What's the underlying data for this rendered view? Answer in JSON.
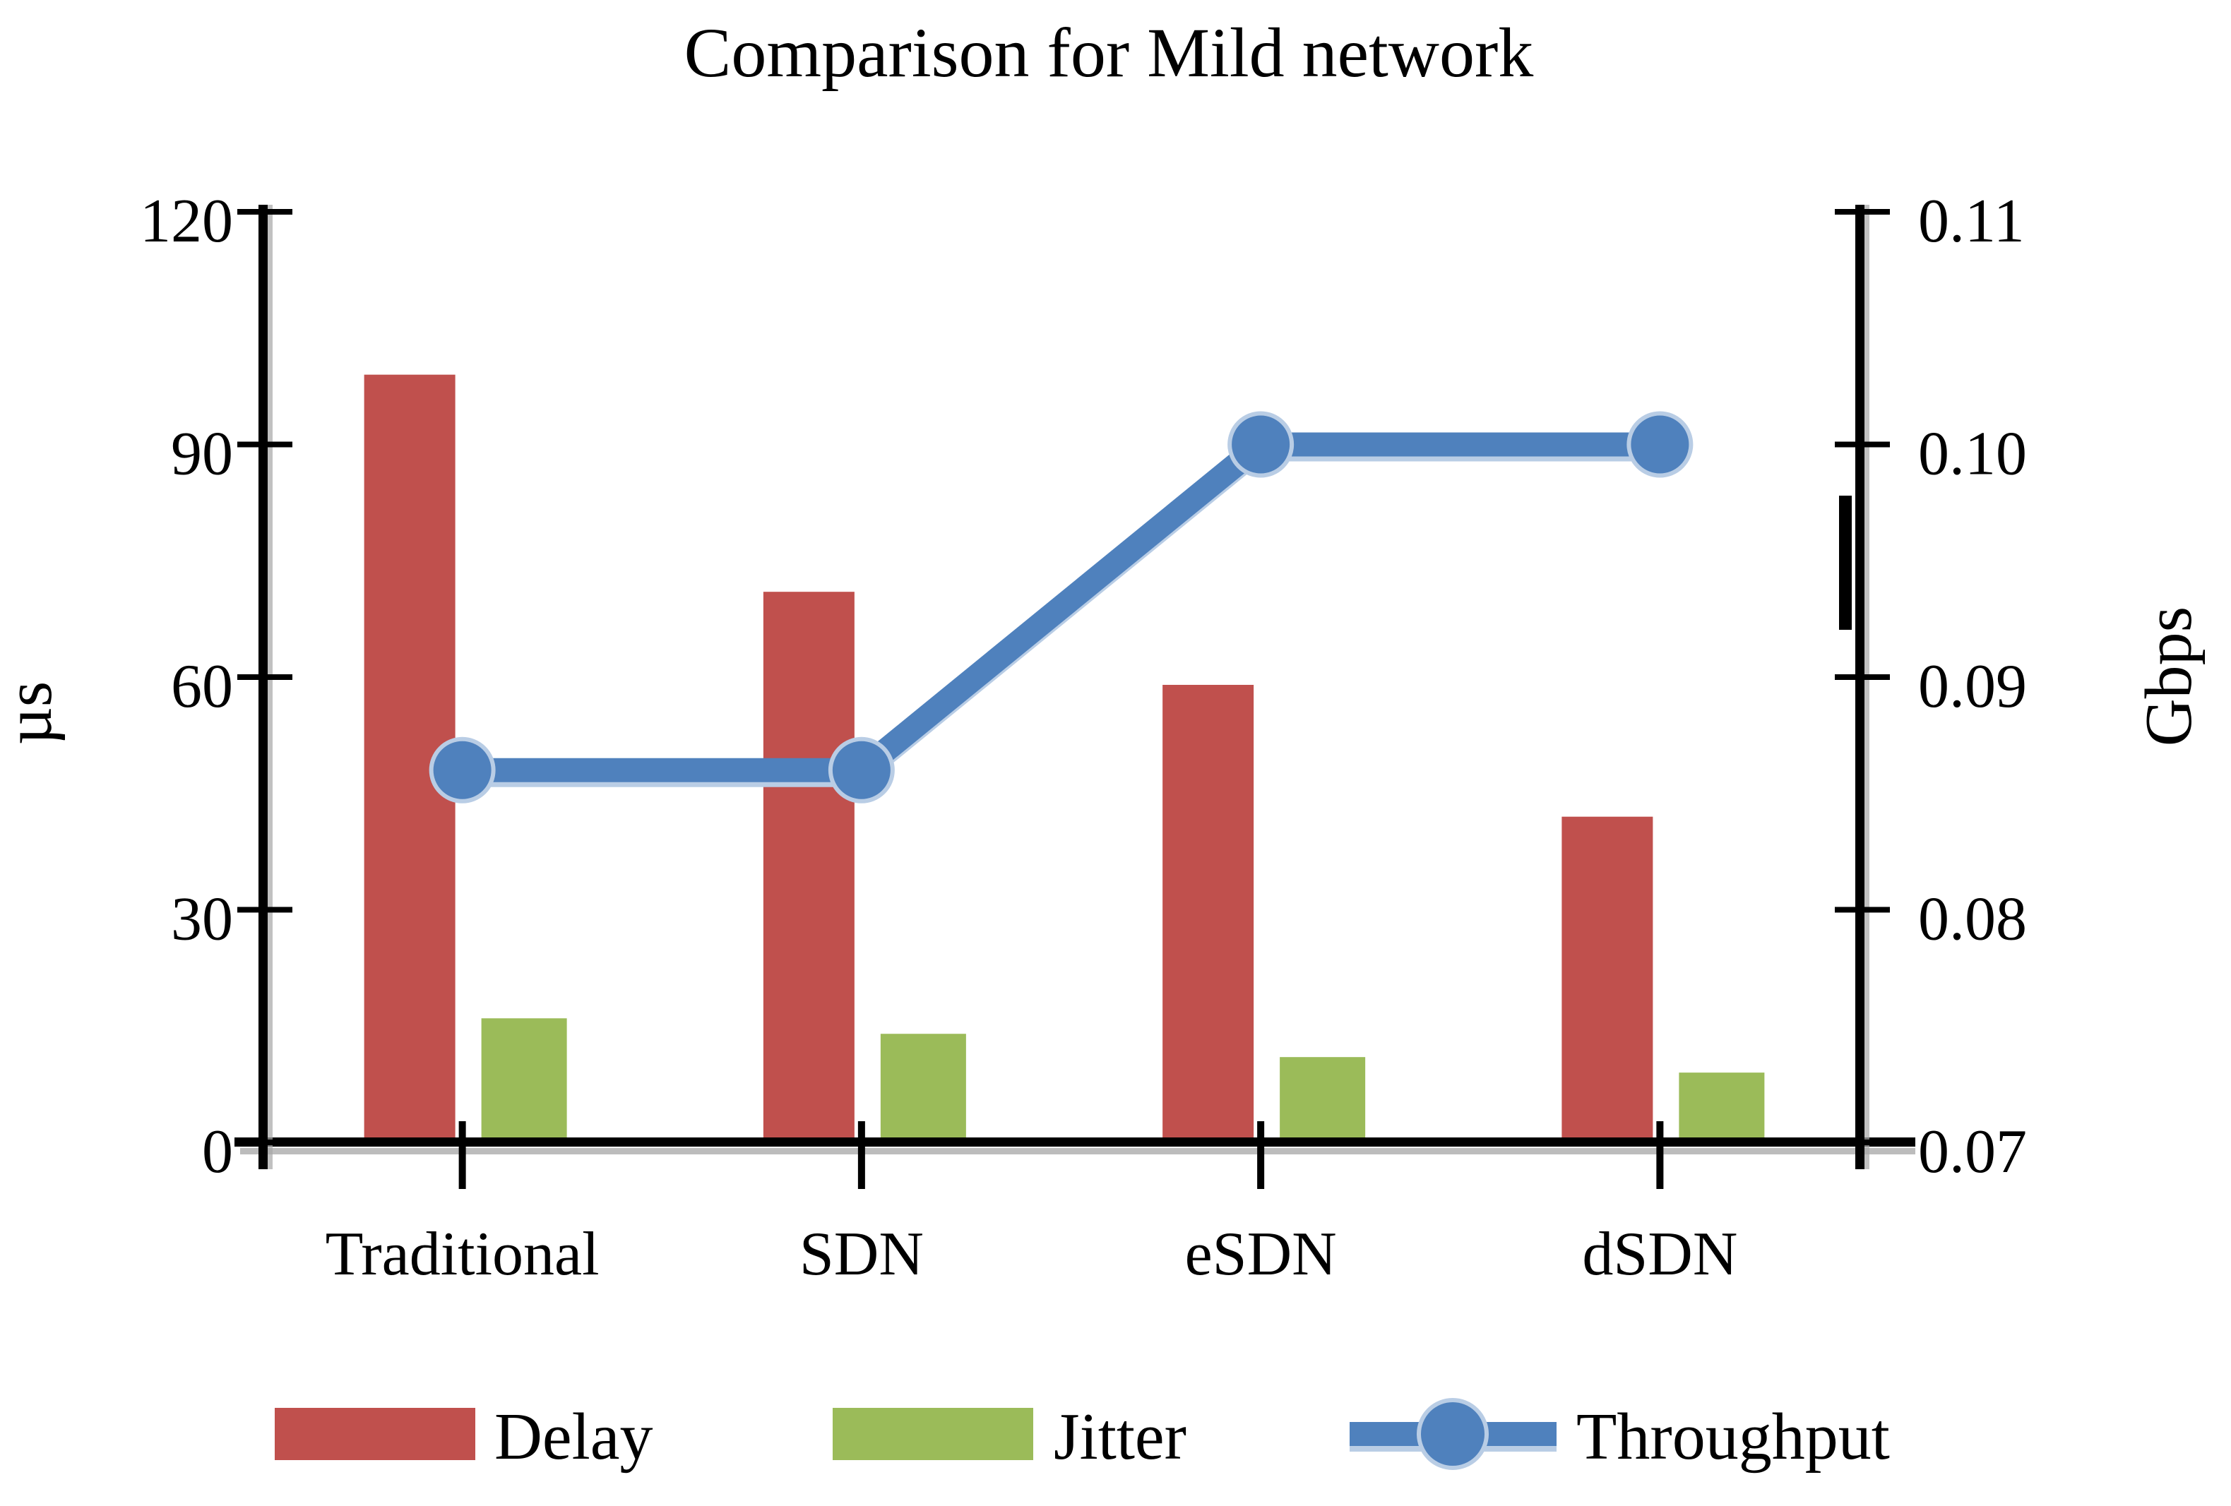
{
  "chart_data": {
    "type": "combo-bar-line",
    "title": "Comparison for Mild network",
    "categories": [
      "Traditional",
      "SDN",
      "eSDN",
      "dSDN"
    ],
    "series": [
      {
        "name": "Delay",
        "chart_type": "bar",
        "axis": "left",
        "color": "#C0504D",
        "values": [
          99,
          71,
          59,
          42
        ]
      },
      {
        "name": "Jitter",
        "chart_type": "bar",
        "axis": "left",
        "color": "#9BBB59",
        "values": [
          16,
          14,
          11,
          9
        ]
      },
      {
        "name": "Throughput",
        "chart_type": "line",
        "axis": "right",
        "color": "#4F81BD",
        "marker": "circle",
        "values": [
          0.086,
          0.086,
          0.1,
          0.1
        ]
      }
    ],
    "left_axis": {
      "label": "µs",
      "min": 0,
      "max": 120,
      "step": 30,
      "tick_labels": [
        "0",
        "30",
        "60",
        "90",
        "120"
      ]
    },
    "right_axis": {
      "label": "Gbps",
      "min": 0.07,
      "max": 0.11,
      "step": 0.01,
      "tick_labels": [
        "0.07",
        "0.08",
        "0.09",
        "0.10",
        "0.11"
      ]
    },
    "legend": {
      "position": "bottom",
      "entries": [
        "Delay",
        "Jitter",
        "Throughput"
      ]
    },
    "grid": false
  },
  "style_colors": {
    "axis": "#000000",
    "axis_shadow": "#A6A6A6",
    "line_shadow": "#B9CDE5",
    "background": "#FFFFFF"
  }
}
